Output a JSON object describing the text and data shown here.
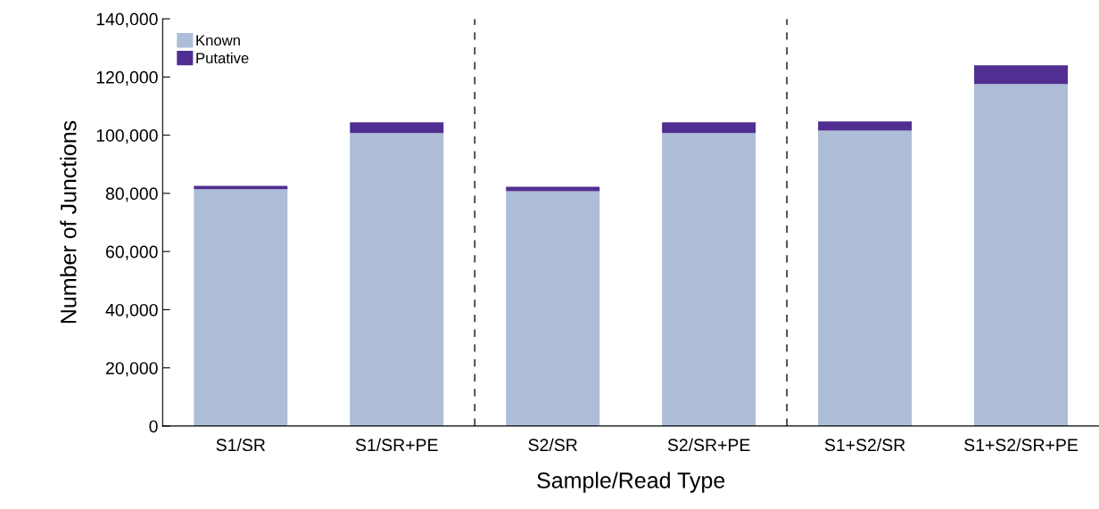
{
  "chart_data": {
    "type": "bar",
    "stacked": true,
    "xlabel": "Sample/Read Type",
    "ylabel": "Number of Junctions",
    "categories": [
      "S1/SR",
      "S1/SR+PE",
      "S2/SR",
      "S2/SR+PE",
      "S1+S2/SR",
      "S1+S2/SR+PE"
    ],
    "series": [
      {
        "name": "Known",
        "color": "#adbdd7",
        "values": [
          81400,
          100700,
          80700,
          100700,
          101600,
          117600
        ]
      },
      {
        "name": "Putative",
        "color": "#512e91",
        "values": [
          1200,
          3700,
          1600,
          3700,
          3100,
          6400
        ]
      }
    ],
    "ylim": [
      0,
      140000
    ],
    "yticks": [
      {
        "value": 0,
        "label": "0"
      },
      {
        "value": 20000,
        "label": "20,000"
      },
      {
        "value": 40000,
        "label": "40,000"
      },
      {
        "value": 60000,
        "label": "60,000"
      },
      {
        "value": 80000,
        "label": "80,000"
      },
      {
        "value": 100000,
        "label": "100,000"
      },
      {
        "value": 120000,
        "label": "120,000"
      },
      {
        "value": 140000,
        "label": "140,000"
      }
    ],
    "grid": false,
    "legend": "top left"
  }
}
